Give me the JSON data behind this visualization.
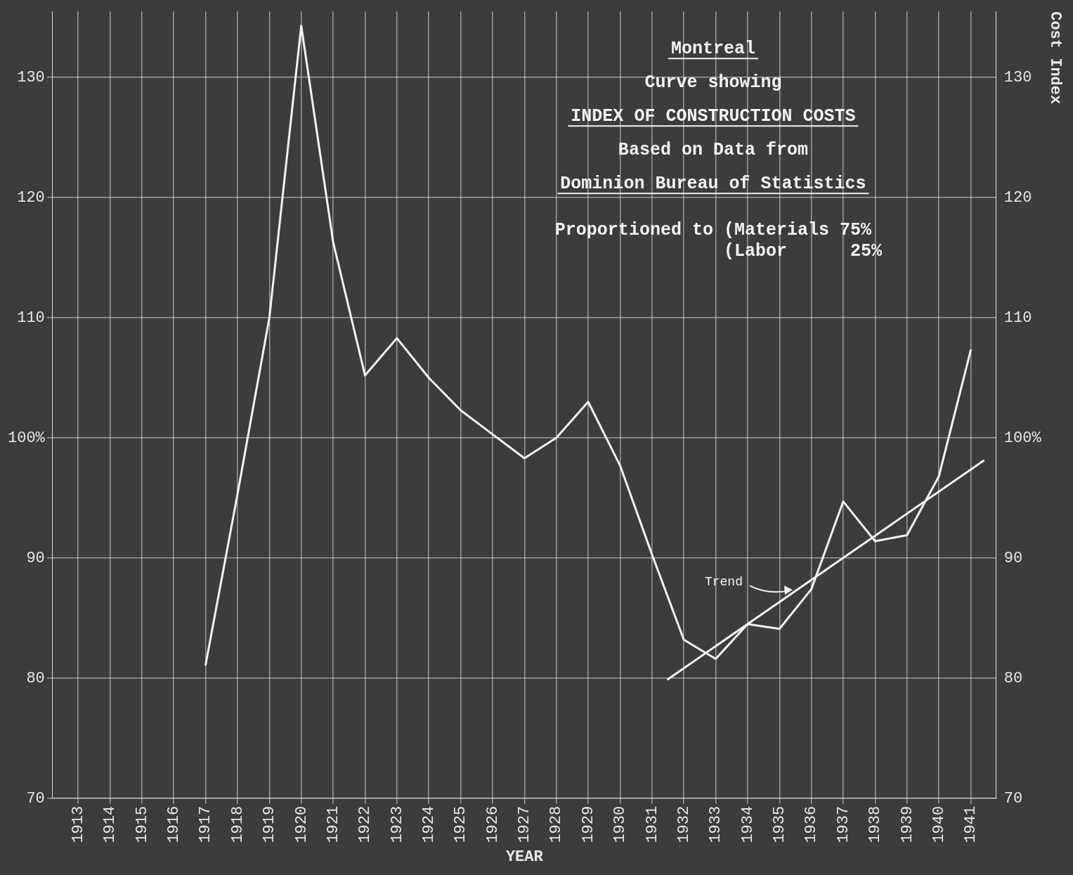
{
  "chart_data": {
    "type": "line",
    "title": "INDEX OF CONSTRUCTION COSTS",
    "xlabel": "YEAR",
    "y2label": "Cost Index",
    "x": [
      1917,
      1918,
      1919,
      1920,
      1921,
      1922,
      1923,
      1924,
      1925,
      1926,
      1927,
      1928,
      1929,
      1930,
      1931,
      1932,
      1933,
      1934,
      1935,
      1936,
      1937,
      1938,
      1939,
      1940,
      1941
    ],
    "series": [
      {
        "color": "#f2f2f2",
        "values": [
          81.1,
          95.3,
          110,
          134.3,
          116.3,
          105.2,
          108.3,
          105,
          102.3,
          100.3,
          98.3,
          100,
          103,
          97.7,
          90.3,
          83.2,
          81.6,
          84.5,
          84.1,
          87.4,
          94.7,
          91.4,
          91.9,
          96.8,
          107.3
        ]
      },
      {
        "type": "line",
        "color": "#f2f2f2",
        "x": [
          1931.5,
          1941.4
        ],
        "values": [
          79.9,
          98.1
        ]
      }
    ],
    "xlim": [
      1912.2,
      1941.8
    ],
    "xticks": [
      1913,
      1914,
      1915,
      1916,
      1917,
      1918,
      1919,
      1920,
      1921,
      1922,
      1923,
      1924,
      1925,
      1926,
      1927,
      1928,
      1929,
      1930,
      1931,
      1932,
      1933,
      1934,
      1935,
      1936,
      1937,
      1938,
      1939,
      1940,
      1941
    ],
    "ylim": [
      70,
      135.5
    ],
    "yticks": [
      70,
      80,
      90,
      {
        "value": 100,
        "label": "100%"
      },
      110,
      120,
      130
    ],
    "y2lim": [
      70,
      135.5
    ],
    "y2ticks": [
      70,
      80,
      90,
      {
        "value": 100,
        "label": "100%"
      },
      110,
      120,
      130
    ],
    "grid": true,
    "marker": "none",
    "line_style": "solid",
    "annotations": [
      "Montreal",
      "Curve showing",
      "Based on Data from",
      "Dominion Bureau of Statistics",
      "Proportioned to (Materials 75%",
      "(Labor      25%",
      {
        "text": "Trend",
        "x": 1935.5,
        "y": 87.4
      }
    ]
  }
}
